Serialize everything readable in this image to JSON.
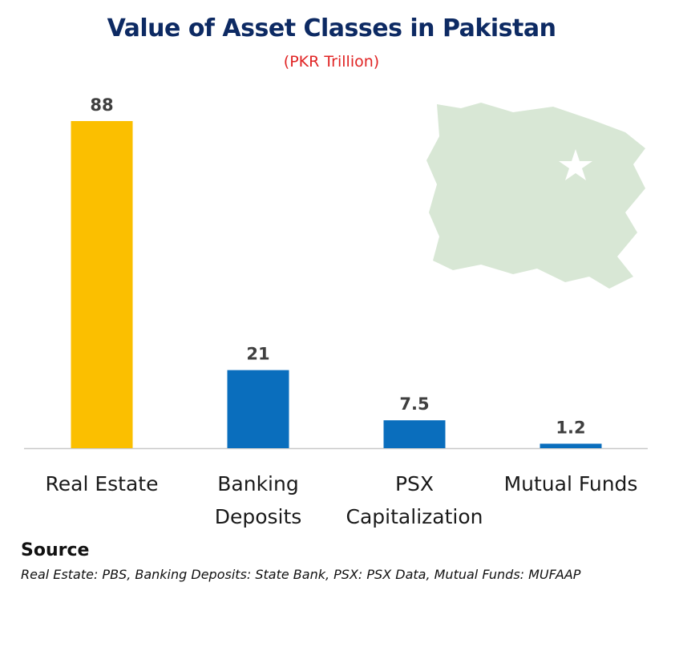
{
  "chart_data": {
    "type": "bar",
    "title": "Value of Asset Classes in Pakistan",
    "subtitle": "(PKR Trillion)",
    "categories": [
      [
        "Real Estate"
      ],
      [
        "Banking",
        "Deposits"
      ],
      [
        "PSX",
        "Capitalization"
      ],
      [
        "Mutual Funds"
      ]
    ],
    "values": [
      88,
      21,
      7.5,
      1.2
    ],
    "value_labels": [
      "88",
      "21",
      "7.5",
      "1.2"
    ],
    "colors": [
      "#fbbf00",
      "#0a6ebd",
      "#0a6ebd",
      "#0a6ebd"
    ],
    "ylim": [
      0,
      88
    ],
    "grid": false,
    "legend": "none"
  },
  "source": {
    "heading": "Source",
    "text": "Real Estate: PBS, Banking Deposits: State Bank, PSX: PSX Data, Mutual Funds: MUFAAP"
  },
  "colors": {
    "title": "#0d2a63",
    "subtitle": "#e02424",
    "axis": "#c8c8c8",
    "flag_green": "#b9d5b4"
  },
  "decoration": {
    "watermark": "pakistan-flag"
  }
}
